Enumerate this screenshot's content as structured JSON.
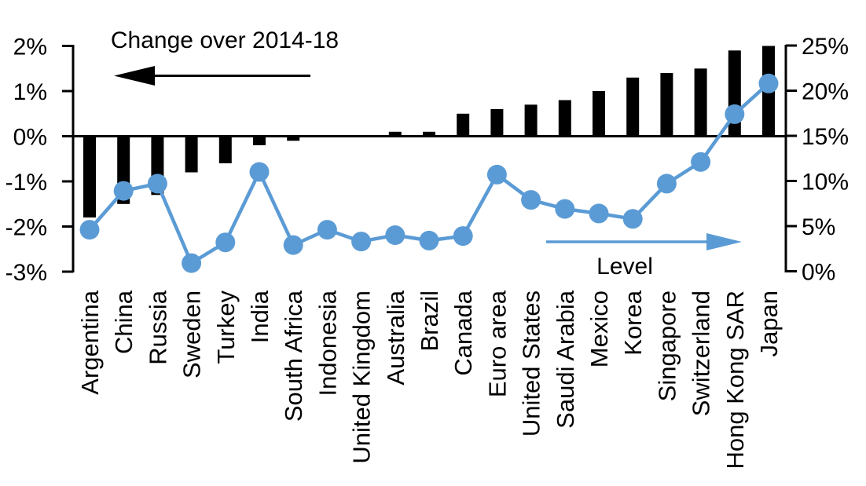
{
  "chart_data": {
    "type": "bar+line dual-axis combo",
    "title": "Change over 2014-18",
    "categories": [
      "Argentina",
      "China",
      "Russia",
      "Sweden",
      "Turkey",
      "India",
      "South Africa",
      "Indonesia",
      "United Kingdom",
      "Australia",
      "Brazil",
      "Canada",
      "Euro area",
      "United States",
      "Saudi Arabia",
      "Mexico",
      "Korea",
      "Singapore",
      "Switzerland",
      "Hong Kong SAR",
      "Japan"
    ],
    "series": [
      {
        "name": "Change over 2014-18",
        "type": "bar",
        "axis": "left",
        "color": "#000000",
        "unit": "%",
        "values": [
          -1.8,
          -1.5,
          -1.3,
          -0.8,
          -0.6,
          -0.2,
          -0.1,
          0,
          0,
          0.1,
          0.1,
          0.5,
          0.6,
          0.7,
          0.8,
          1.0,
          1.3,
          1.4,
          1.5,
          1.9,
          2.0
        ]
      },
      {
        "name": "Level",
        "type": "line",
        "axis": "right",
        "color": "#5B9BD5",
        "unit": "%",
        "values": [
          4.6,
          8.9,
          9.7,
          0.9,
          3.2,
          11.0,
          2.9,
          4.6,
          3.3,
          4.0,
          3.4,
          3.9,
          10.7,
          7.9,
          6.9,
          6.4,
          5.8,
          9.7,
          12.1,
          17.4,
          20.8
        ]
      }
    ],
    "left_axis": {
      "min": -3,
      "max": 2,
      "tick_labels": [
        "2%",
        "1%",
        "0%",
        "-1%",
        "-2%",
        "-3%"
      ],
      "tick_values": [
        2,
        1,
        0,
        -1,
        -2,
        -3
      ]
    },
    "right_axis": {
      "min": 0,
      "max": 25,
      "tick_labels": [
        "25%",
        "20%",
        "15%",
        "10%",
        "5%",
        "0%"
      ],
      "tick_values": [
        25,
        20,
        15,
        10,
        5,
        0
      ]
    },
    "annotations": {
      "bars_arrow_direction": "left",
      "line_arrow_direction": "right"
    },
    "grid": false,
    "legend_position": "in-plot text annotations"
  }
}
